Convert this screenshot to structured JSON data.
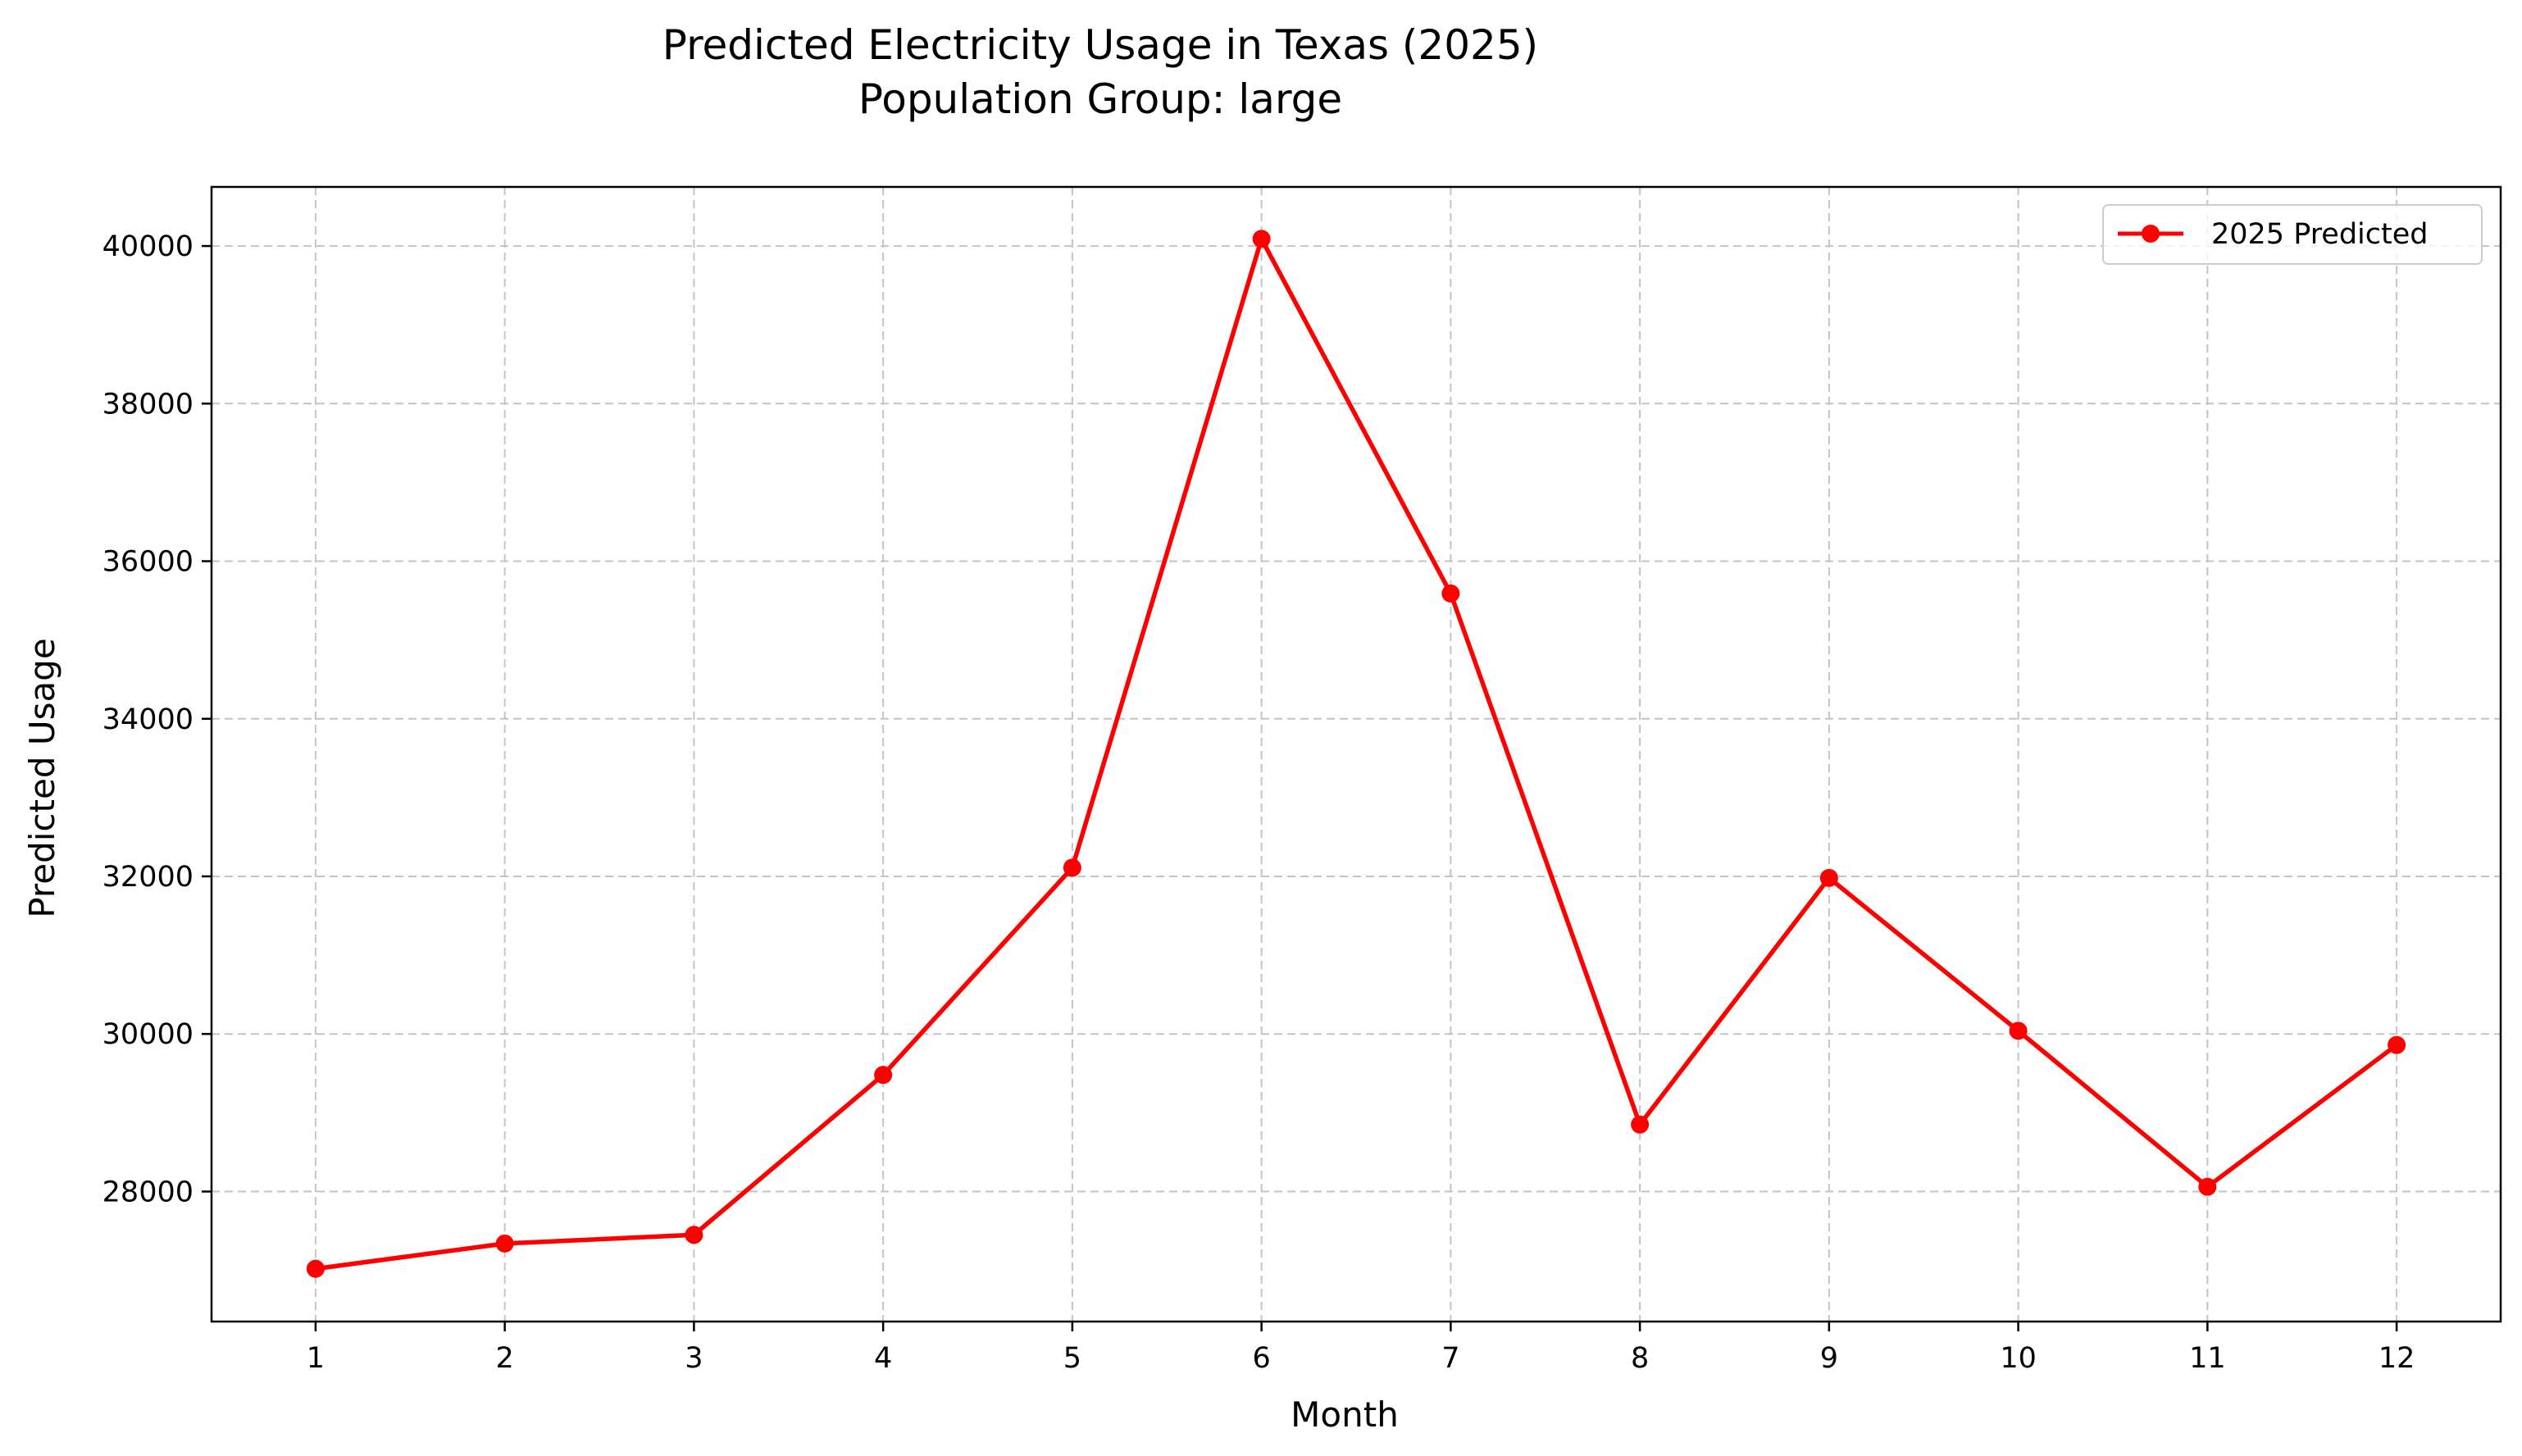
{
  "chart_data": {
    "type": "line",
    "title": "Predicted Electricity Usage in Texas (2025)",
    "subtitle": "Population Group: large",
    "xlabel": "Month",
    "ylabel": "Predicted Usage",
    "x": [
      1,
      2,
      3,
      4,
      5,
      6,
      7,
      8,
      9,
      10,
      11,
      12
    ],
    "x_ticks": [
      "1",
      "2",
      "3",
      "4",
      "5",
      "6",
      "7",
      "8",
      "9",
      "10",
      "11",
      "12"
    ],
    "y_ticks": [
      "28000",
      "30000",
      "32000",
      "34000",
      "36000",
      "38000",
      "40000"
    ],
    "xlim": [
      0.45,
      12.55
    ],
    "ylim": [
      26350,
      40750
    ],
    "grid": true,
    "legend_position": "top-right",
    "series": [
      {
        "name": "2025 Predicted",
        "color": "#ff0000",
        "marker": "circle",
        "values": [
          27020,
          27340,
          27450,
          29480,
          32110,
          40090,
          35590,
          28850,
          31980,
          30040,
          28060,
          29860
        ]
      }
    ]
  }
}
